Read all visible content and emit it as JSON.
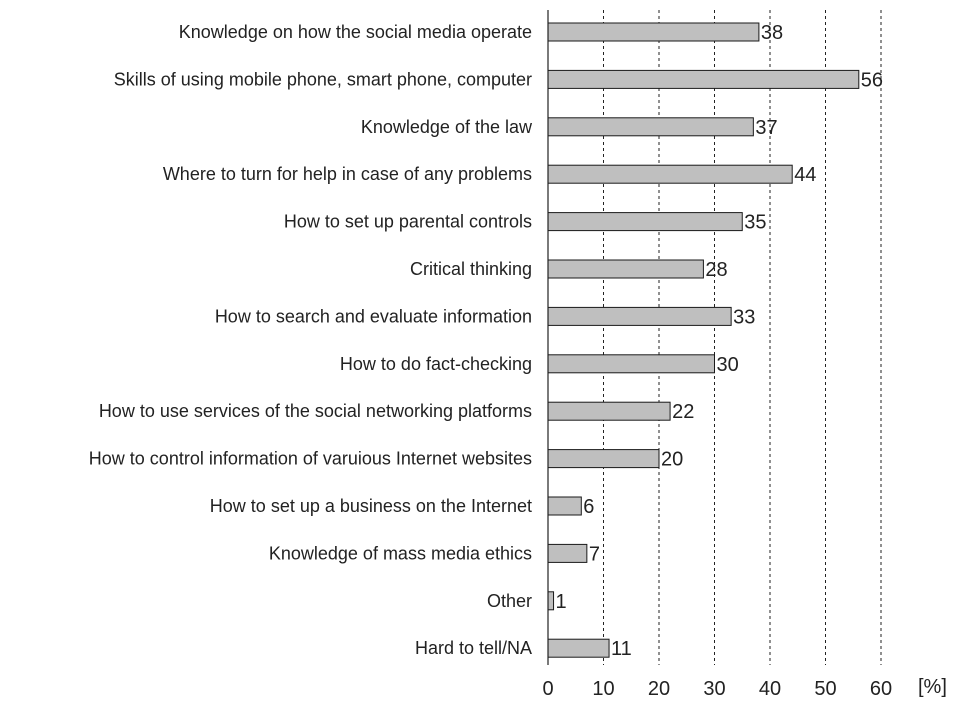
{
  "chart_data": {
    "type": "bar",
    "orientation": "horizontal",
    "categories": [
      "Knowledge on how the social media operate",
      "Skills of using mobile phone, smart phone, computer",
      "Knowledge of the law",
      "Where to turn for help in case of any problems",
      "How to set up parental controls",
      "Critical thinking",
      "How to search and evaluate information",
      "How to do fact-checking",
      "How to use services of the social networking platforms",
      "How to control information of varuious Internet websites",
      "How to set up a business on the Internet",
      "Knowledge of mass media ethics",
      "Other",
      "Hard to tell/NA"
    ],
    "values": [
      38,
      56,
      37,
      44,
      35,
      28,
      33,
      30,
      22,
      20,
      6,
      7,
      1,
      11
    ],
    "value_labels": [
      "38",
      "56",
      "37",
      "44",
      "35",
      "28",
      "33",
      "30",
      "22",
      "20",
      "6",
      "7",
      "1",
      "11"
    ],
    "xlim": [
      0,
      70
    ],
    "xticks": [
      "0",
      "10",
      "20",
      "30",
      "40",
      "50",
      "60"
    ],
    "xtick_values": [
      0,
      10,
      20,
      30,
      40,
      50,
      60
    ],
    "unit": "[%]",
    "grid": true,
    "bar_color": "#bfbfbf",
    "bar_edge_color": "#1a1a1a"
  }
}
